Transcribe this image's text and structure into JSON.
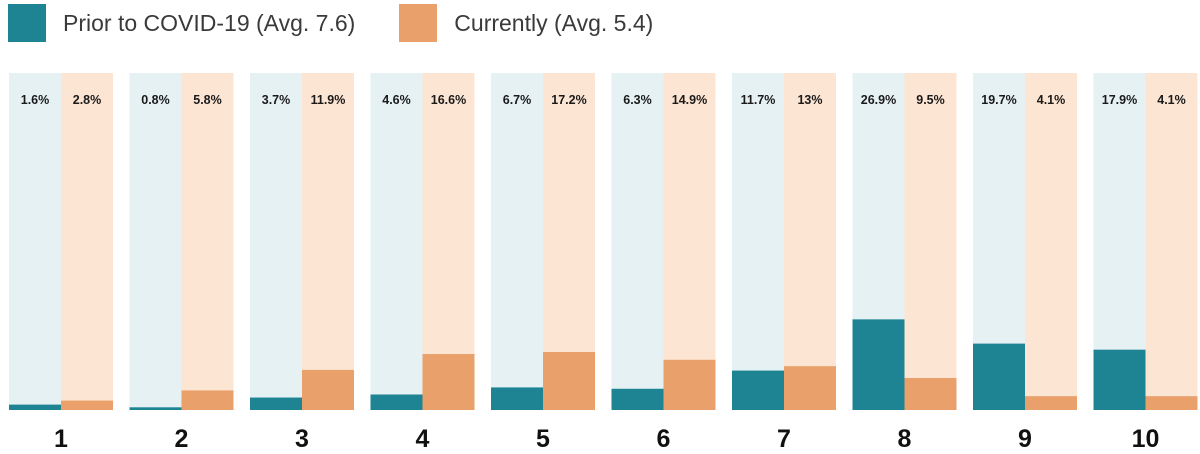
{
  "chart_data": {
    "type": "bar",
    "categories": [
      "1",
      "2",
      "3",
      "4",
      "5",
      "6",
      "7",
      "8",
      "9",
      "10"
    ],
    "series": [
      {
        "name": "Prior to COVID-19 (Avg. 7.6)",
        "values": [
          1.6,
          0.8,
          3.7,
          4.6,
          6.7,
          6.3,
          11.7,
          26.9,
          19.7,
          17.9
        ],
        "labels": [
          "1.6%",
          "0.8%",
          "3.7%",
          "4.6%",
          "6.7%",
          "6.3%",
          "11.7%",
          "26.9%",
          "19.7%",
          "17.9%"
        ],
        "color": "#1e8494",
        "bg_color": "#e6f1f4"
      },
      {
        "name": "Currently (Avg. 5.4)",
        "values": [
          2.8,
          5.8,
          11.9,
          16.6,
          17.2,
          14.9,
          13,
          9.5,
          4.1,
          4.1
        ],
        "labels": [
          "2.8%",
          "5.8%",
          "11.9%",
          "16.6%",
          "17.2%",
          "14.9%",
          "13%",
          "9.5%",
          "4.1%",
          "4.1%"
        ],
        "color": "#e9a06a",
        "bg_color": "#fde5d3"
      }
    ],
    "ylim": [
      0,
      100
    ],
    "grid": false,
    "legend_position": "top-left"
  }
}
